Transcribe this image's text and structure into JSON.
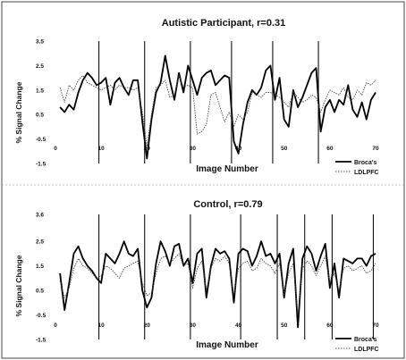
{
  "chart_data": [
    {
      "type": "line",
      "title": "Autistic Participant, r=0.31",
      "xlabel": "Image Number",
      "ylabel": "% Signal Change",
      "xlim": [
        0,
        70
      ],
      "ylim": [
        -1.5,
        3.5
      ],
      "xticks": [
        0,
        10,
        20,
        30,
        40,
        50,
        60,
        70
      ],
      "yticks": [
        3.5,
        2.5,
        1.5,
        0.5,
        -0.5,
        -1.5
      ],
      "legend_position": "bottom-right",
      "vlines": [
        9.5,
        19.5,
        29.5,
        38.5,
        47.5,
        57.5
      ],
      "x": [
        1,
        2,
        3,
        4,
        5,
        6,
        7,
        8,
        9,
        10,
        11,
        12,
        13,
        14,
        15,
        16,
        17,
        18,
        19,
        20,
        21,
        22,
        23,
        24,
        25,
        26,
        27,
        28,
        29,
        30,
        31,
        32,
        33,
        34,
        35,
        36,
        37,
        38,
        39,
        40,
        41,
        42,
        43,
        44,
        45,
        46,
        47,
        48,
        49,
        50,
        51,
        52,
        53,
        54,
        55,
        56,
        57,
        58,
        59,
        60,
        61,
        62,
        63,
        64,
        65,
        66,
        67,
        68,
        69,
        70
      ],
      "series": [
        {
          "name": "Broca's",
          "style": "solid",
          "values": [
            0.8,
            0.6,
            0.9,
            0.7,
            1.4,
            1.9,
            2.2,
            2.0,
            1.7,
            1.8,
            2.0,
            0.9,
            1.8,
            2.0,
            1.6,
            1.3,
            1.9,
            1.9,
            0.2,
            -1.3,
            0.3,
            1.4,
            1.8,
            2.9,
            1.9,
            1.1,
            2.2,
            1.4,
            2.5,
            1.9,
            1.3,
            2.0,
            2.2,
            2.3,
            1.7,
            1.9,
            2.1,
            2.0,
            -0.6,
            -1.1,
            0.1,
            1.0,
            1.5,
            1.3,
            1.6,
            2.3,
            2.5,
            1.1,
            2.0,
            0.3,
            0.0,
            1.5,
            0.8,
            1.2,
            1.7,
            2.2,
            2.4,
            -0.2,
            0.8,
            1.1,
            0.6,
            1.1,
            0.9,
            1.7,
            0.7,
            0.4,
            1.0,
            0.3,
            1.1,
            1.4
          ]
        },
        {
          "name": "LDLPFC",
          "style": "dotted",
          "values": [
            1.6,
            1.0,
            1.7,
            1.5,
            1.9,
            2.1,
            1.8,
            1.7,
            1.6,
            1.5,
            1.6,
            1.7,
            1.5,
            1.7,
            1.6,
            1.6,
            1.5,
            1.6,
            0.6,
            -0.8,
            0.5,
            1.6,
            1.7,
            1.9,
            1.2,
            1.3,
            2.1,
            1.6,
            1.7,
            1.6,
            -0.3,
            -0.2,
            0.1,
            1.3,
            1.4,
            0.8,
            0.2,
            0.6,
            0.0,
            0.5,
            0.3,
            0.6,
            1.4,
            1.3,
            1.2,
            1.4,
            1.4,
            1.3,
            1.2,
            1.0,
            0.8,
            1.4,
            1.2,
            1.0,
            1.1,
            1.3,
            1.2,
            0.6,
            1.1,
            1.5,
            1.4,
            1.3,
            1.6,
            1.2,
            1.1,
            1.5,
            1.3,
            1.8,
            1.7,
            1.9
          ]
        }
      ]
    },
    {
      "type": "line",
      "title": "Control, r=0.79",
      "xlabel": "Image Number",
      "ylabel": "% Signal Change",
      "xlim": [
        0,
        70
      ],
      "ylim": [
        -1.5,
        3.6
      ],
      "xticks": [
        0,
        10,
        20,
        30,
        40,
        50,
        60,
        70
      ],
      "yticks": [
        3.6,
        2.5,
        1.5,
        0.5,
        -0.5,
        -1.5
      ],
      "legend_position": "bottom-right",
      "vlines": [
        9.5,
        19.5,
        29.5,
        40.5,
        48.5,
        54.5,
        60.5,
        69.5
      ],
      "x": [
        1,
        2,
        3,
        4,
        5,
        6,
        7,
        8,
        9,
        10,
        11,
        12,
        13,
        14,
        15,
        16,
        17,
        18,
        19,
        20,
        21,
        22,
        23,
        24,
        25,
        26,
        27,
        28,
        29,
        30,
        31,
        32,
        33,
        34,
        35,
        36,
        37,
        38,
        39,
        40,
        41,
        42,
        43,
        44,
        45,
        46,
        47,
        48,
        49,
        50,
        51,
        52,
        53,
        54,
        55,
        56,
        57,
        58,
        59,
        60,
        61,
        62,
        63,
        64,
        65,
        66,
        67,
        68,
        69,
        70
      ],
      "series": [
        {
          "name": "Broca's",
          "style": "solid",
          "values": [
            1.2,
            -0.3,
            0.8,
            2.0,
            2.3,
            1.8,
            1.5,
            1.3,
            1.0,
            0.8,
            2.0,
            1.8,
            1.6,
            2.0,
            2.5,
            2.0,
            1.9,
            2.2,
            0.5,
            -0.2,
            0.2,
            1.6,
            2.5,
            2.1,
            1.5,
            2.3,
            2.4,
            1.5,
            1.8,
            0.8,
            2.0,
            2.2,
            0.2,
            1.5,
            2.2,
            2.0,
            2.1,
            1.8,
            0.0,
            2.0,
            2.2,
            2.1,
            1.5,
            1.9,
            2.5,
            1.9,
            2.0,
            1.6,
            2.0,
            0.2,
            1.6,
            2.2,
            -1.0,
            1.8,
            2.3,
            2.0,
            1.3,
            1.9,
            2.4,
            0.6,
            1.6,
            0.2,
            1.8,
            1.7,
            1.6,
            1.8,
            1.8,
            1.5,
            1.9,
            2.0
          ]
        },
        {
          "name": "LDLPFC",
          "style": "dotted",
          "values": [
            0.9,
            0.2,
            0.6,
            1.4,
            1.8,
            1.5,
            1.4,
            1.2,
            1.0,
            1.1,
            1.5,
            1.4,
            1.2,
            1.0,
            1.4,
            1.5,
            1.6,
            1.7,
            0.8,
            0.3,
            0.4,
            1.2,
            1.8,
            1.9,
            1.6,
            1.8,
            2.0,
            1.5,
            1.6,
            0.6,
            1.4,
            1.7,
            0.5,
            1.4,
            1.8,
            1.7,
            1.9,
            1.6,
            0.3,
            1.4,
            1.6,
            1.7,
            1.3,
            1.4,
            1.8,
            1.6,
            1.5,
            1.2,
            1.6,
            0.3,
            1.2,
            1.6,
            -0.5,
            1.4,
            1.7,
            1.5,
            1.1,
            1.5,
            1.9,
            0.8,
            1.2,
            0.5,
            1.4,
            1.5,
            1.3,
            1.4,
            1.5,
            1.2,
            1.3,
            1.6
          ]
        }
      ]
    }
  ]
}
